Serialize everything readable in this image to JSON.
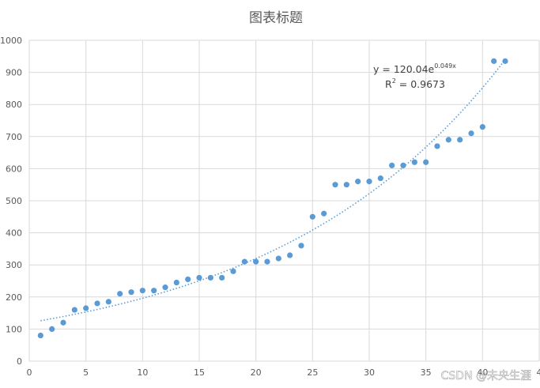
{
  "chart_data": {
    "type": "scatter",
    "title": "图表标题",
    "xlabel": "",
    "ylabel": "",
    "xlim": [
      0,
      45
    ],
    "ylim": [
      0,
      1000
    ],
    "x_ticks": [
      "0",
      "5",
      "10",
      "15",
      "20",
      "25",
      "30",
      "35",
      "40",
      "4"
    ],
    "y_ticks": [
      "0",
      "100",
      "200",
      "300",
      "400",
      "500",
      "600",
      "700",
      "800",
      "900",
      "1000"
    ],
    "grid": true,
    "legend": "none",
    "point_color": "#5B9BD5",
    "trendline_color": "#5B9BD5",
    "series": [
      {
        "x": [
          1,
          2,
          3,
          4,
          5,
          6,
          7,
          8,
          9,
          10,
          11,
          12,
          13,
          14,
          15,
          16,
          17,
          18,
          19,
          20,
          21,
          22,
          23,
          24,
          25,
          26,
          27,
          28,
          29,
          30,
          31,
          32,
          33,
          34,
          35,
          36,
          37,
          38,
          39,
          40,
          41,
          42
        ],
        "y": [
          80,
          100,
          120,
          160,
          165,
          180,
          185,
          210,
          215,
          220,
          220,
          230,
          245,
          255,
          260,
          260,
          260,
          280,
          310,
          310,
          310,
          320,
          330,
          360,
          450,
          460,
          550,
          550,
          560,
          560,
          570,
          610,
          610,
          620,
          620,
          670,
          690,
          690,
          710,
          730,
          935,
          935
        ]
      }
    ],
    "trendline": {
      "type": "exponential",
      "a": 120.04,
      "b": 0.049,
      "equation_prefix": "y = 120.04e",
      "equation_exponent": "0.049x",
      "r2_prefix": "R",
      "r2_sup": "2",
      "r2_value": " = 0.9673"
    }
  },
  "watermark": "CSDN @未央生涯"
}
